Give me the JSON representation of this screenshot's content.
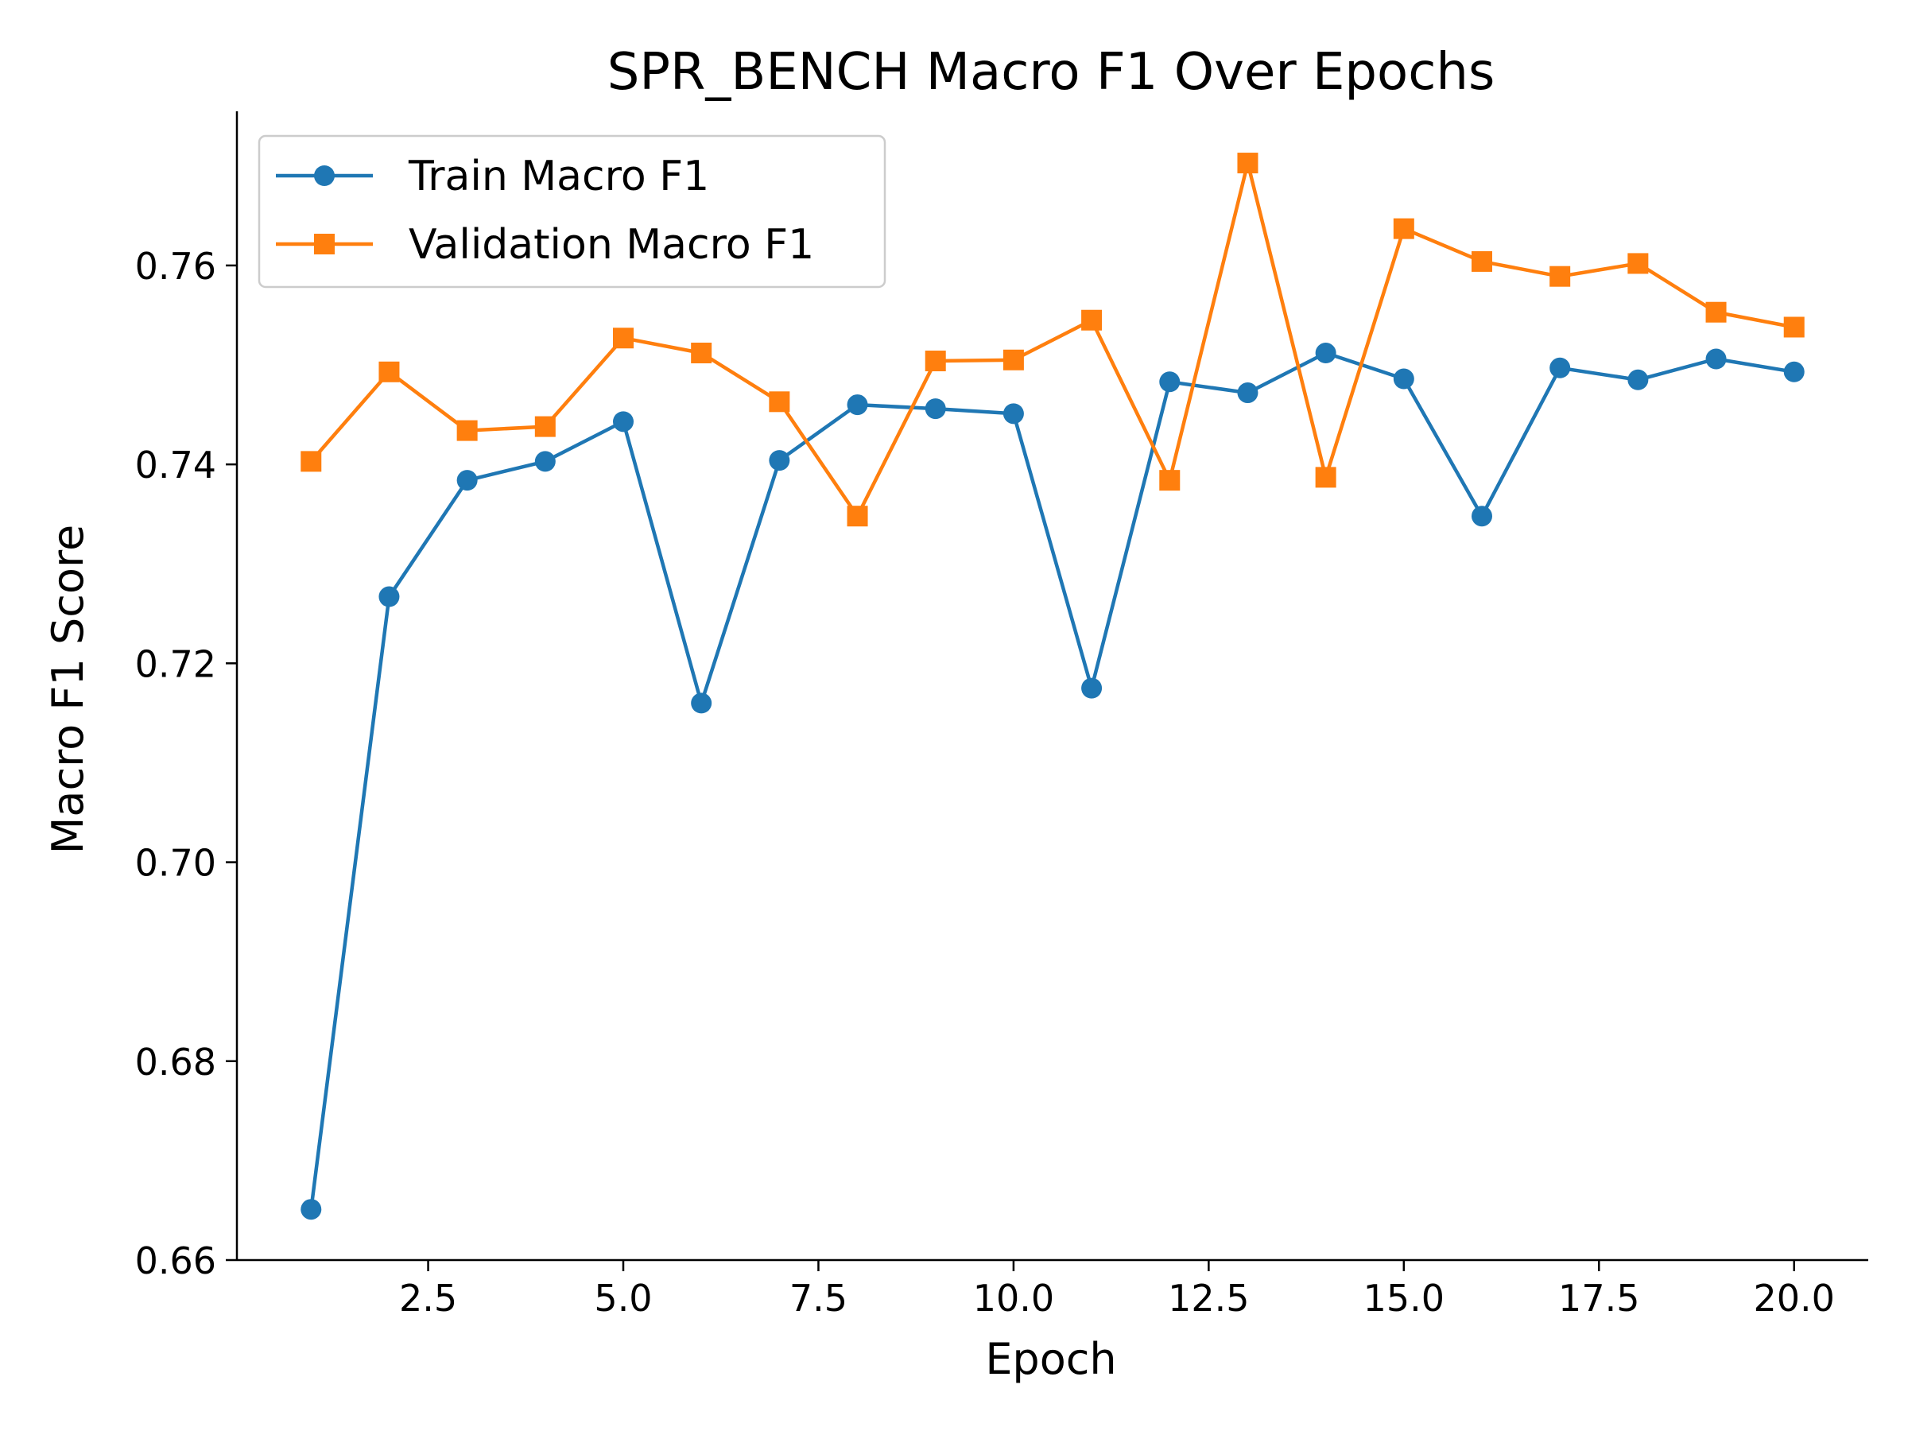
{
  "chart_data": {
    "type": "line",
    "title": "SPR_BENCH Macro F1 Over Epochs",
    "xlabel": "Epoch",
    "ylabel": "Macro F1 Score",
    "xlim": [
      0.05,
      20.95
    ],
    "ylim": [
      0.66,
      0.7755
    ],
    "xticks": [
      2.5,
      5.0,
      7.5,
      10.0,
      12.5,
      15.0,
      17.5,
      20.0
    ],
    "xtick_labels": [
      "2.5",
      "5.0",
      "7.5",
      "10.0",
      "12.5",
      "15.0",
      "17.5",
      "20.0"
    ],
    "yticks": [
      0.66,
      0.68,
      0.7,
      0.72,
      0.74,
      0.76
    ],
    "ytick_labels": [
      "0.66",
      "0.68",
      "0.70",
      "0.72",
      "0.74",
      "0.76"
    ],
    "grid": false,
    "legend_position": "top-left",
    "x": [
      1,
      2,
      3,
      4,
      5,
      6,
      7,
      8,
      9,
      10,
      11,
      12,
      13,
      14,
      15,
      16,
      17,
      18,
      19,
      20
    ],
    "series": [
      {
        "name": "Train Macro F1",
        "color": "#1f77b4",
        "marker": "circle",
        "values": [
          0.6651,
          0.7267,
          0.7384,
          0.7403,
          0.7443,
          0.716,
          0.7404,
          0.746,
          0.7456,
          0.7451,
          0.7175,
          0.7483,
          0.7472,
          0.7512,
          0.7486,
          0.7348,
          0.7497,
          0.7485,
          0.7506,
          0.7493
        ]
      },
      {
        "name": "Validation Macro F1",
        "color": "#ff7f0e",
        "marker": "square",
        "values": [
          0.7403,
          0.7493,
          0.7434,
          0.7438,
          0.7527,
          0.7512,
          0.7463,
          0.7348,
          0.7504,
          0.7505,
          0.7545,
          0.7384,
          0.7703,
          0.7387,
          0.7637,
          0.7604,
          0.7589,
          0.7602,
          0.7553,
          0.7538
        ]
      }
    ]
  }
}
